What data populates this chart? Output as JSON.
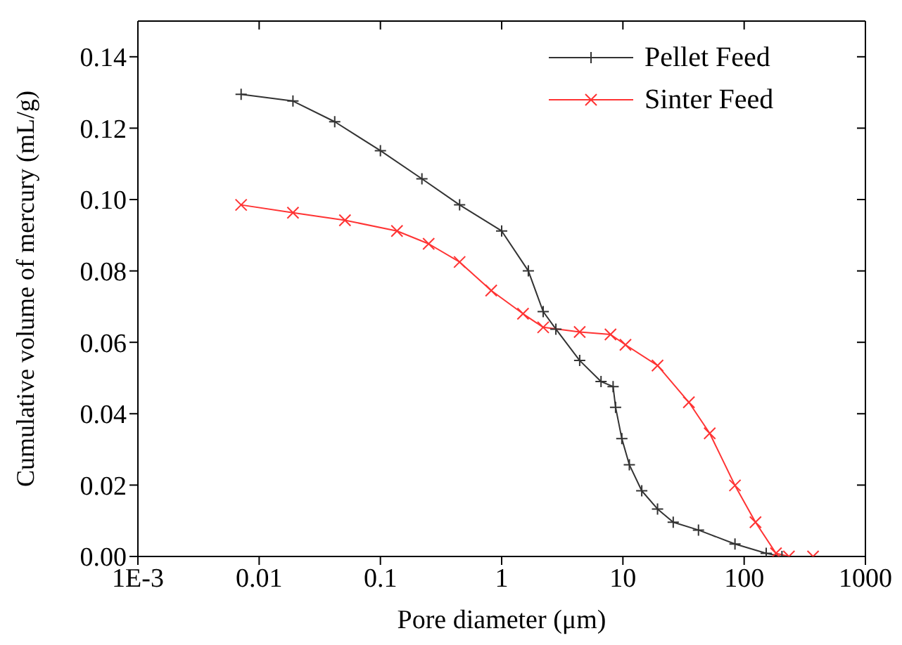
{
  "chart_data": {
    "type": "line",
    "xlabel": "Pore diameter (μm)",
    "ylabel": "Cumulative volume of mercury (mL/g)",
    "log": "x",
    "xlim": [
      0.001,
      1000
    ],
    "xticks": [
      {
        "value": 0.001,
        "label": "1E-3"
      },
      0.01,
      0.1,
      1,
      10,
      100,
      1000
    ],
    "ylim": [
      0,
      0.15
    ],
    "yticks": [
      {
        "value": 0,
        "label": "0.00"
      },
      {
        "value": 0.02,
        "label": "0.02"
      },
      {
        "value": 0.04,
        "label": "0.04"
      },
      {
        "value": 0.06,
        "label": "0.06"
      },
      {
        "value": 0.08,
        "label": "0.08"
      },
      {
        "value": 0.1,
        "label": "0.10"
      },
      {
        "value": 0.12,
        "label": "0.12"
      },
      {
        "value": 0.14,
        "label": "0.14"
      }
    ],
    "legend": "top right",
    "series": [
      {
        "name": "Pellet Feed",
        "color": "#333333",
        "marker": "plus",
        "x": [
          0.0071,
          0.019,
          0.042,
          0.1,
          0.22,
          0.45,
          1,
          1.66,
          2.2,
          2.8,
          4.4,
          6.6,
          8.3,
          8.7,
          9.8,
          11.3,
          14.3,
          19.3,
          26,
          42,
          84,
          152,
          205
        ],
        "values": [
          0.1295,
          0.1276,
          0.1218,
          0.1137,
          0.1058,
          0.0985,
          0.0912,
          0.08,
          0.0686,
          0.0637,
          0.0549,
          0.049,
          0.0476,
          0.0418,
          0.033,
          0.0257,
          0.0184,
          0.0133,
          0.0096,
          0.0074,
          0.0035,
          0.0009,
          0
        ]
      },
      {
        "name": "Sinter Feed",
        "color": "#ff3333",
        "marker": "cross",
        "x": [
          0.0071,
          0.019,
          0.051,
          0.137,
          0.25,
          0.45,
          0.82,
          1.5,
          2.2,
          4.4,
          7.9,
          10.5,
          19.3,
          35,
          52,
          84,
          124,
          183,
          234,
          370
        ],
        "values": [
          0.0985,
          0.0963,
          0.0942,
          0.0912,
          0.0876,
          0.0825,
          0.0745,
          0.068,
          0.0642,
          0.0629,
          0.0622,
          0.0593,
          0.0535,
          0.0432,
          0.0345,
          0.0199,
          0.0096,
          0.0009,
          0,
          0
        ]
      }
    ]
  }
}
